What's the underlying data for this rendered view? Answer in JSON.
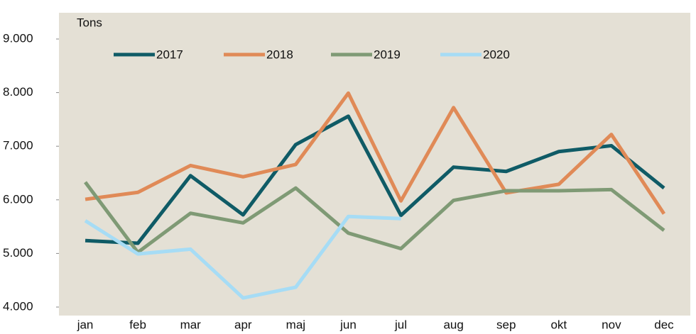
{
  "chart_data": {
    "type": "line",
    "y_label": "Tons",
    "categories": [
      "jan",
      "feb",
      "mar",
      "apr",
      "maj",
      "jun",
      "jul",
      "aug",
      "sep",
      "okt",
      "nov",
      "dec"
    ],
    "series": [
      {
        "name": "2017",
        "color": "#0f5b66",
        "values": [
          5240,
          5190,
          6450,
          5720,
          7030,
          7560,
          5710,
          6610,
          6530,
          6900,
          7010,
          6220
        ]
      },
      {
        "name": "2018",
        "color": "#e08a57",
        "values": [
          6010,
          6140,
          6640,
          6430,
          6660,
          7990,
          5980,
          7720,
          6130,
          6290,
          7220,
          5740
        ]
      },
      {
        "name": "2019",
        "color": "#7f9a75",
        "values": [
          6330,
          5020,
          5750,
          5570,
          6220,
          5380,
          5090,
          5990,
          6170,
          6170,
          6190,
          5430
        ]
      },
      {
        "name": "2020",
        "color": "#a6dcf5",
        "values": [
          5610,
          4990,
          5080,
          4170,
          4370,
          5690,
          5650,
          null,
          null,
          null,
          null,
          null
        ]
      }
    ],
    "ylim": [
      4000,
      9000
    ],
    "yticks": [
      {
        "value": 4000,
        "label": "4.000"
      },
      {
        "value": 5000,
        "label": "5.000"
      },
      {
        "value": 6000,
        "label": "6.000"
      },
      {
        "value": 7000,
        "label": "7.000"
      },
      {
        "value": 8000,
        "label": "8.000"
      },
      {
        "value": 9000,
        "label": "9.000"
      }
    ],
    "legend": "top",
    "grid": false
  }
}
